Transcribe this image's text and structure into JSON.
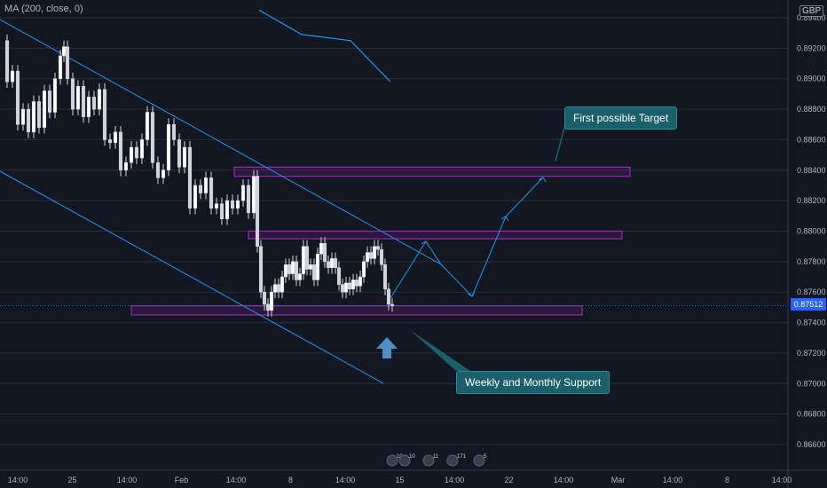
{
  "indicator_label": "MA (200, close, 0)",
  "currency": "GBP",
  "colors": {
    "background": "#131722",
    "grid": "#2a2e39",
    "candle_up": "#ffffff",
    "candle_down": "#ffffff",
    "trendline": "#2196f3",
    "zone": "#9c27b0",
    "callout": "#1b5f6b",
    "price_tag": "#2962ff"
  },
  "chart_data": {
    "type": "candlestick",
    "price_axis": {
      "labels": [
        "0.89400",
        "0.89200",
        "0.89000",
        "0.88800",
        "0.88600",
        "0.88400",
        "0.88200",
        "0.88000",
        "0.87800",
        "0.87600",
        "0.87400",
        "0.87200",
        "0.87000",
        "0.86800",
        "0.86600"
      ],
      "ylim": [
        0.8655,
        0.8945
      ]
    },
    "time_axis": {
      "labels": [
        "14:00",
        "25",
        "14:00",
        "Feb",
        "14:00",
        "8",
        "14:00",
        "15",
        "14:00",
        "22",
        "14:00",
        "Mar",
        "14:00",
        "8",
        "14:00"
      ]
    },
    "last_price": "0.87512",
    "annotations": {
      "target": "First possible Target",
      "support": "Weekly and  Monthly Support"
    },
    "zones": [
      {
        "label": "upper resistance",
        "y_low": 0.8836,
        "y_high": 0.8842
      },
      {
        "label": "middle resistance",
        "y_low": 0.8795,
        "y_high": 0.88
      },
      {
        "label": "weekly and monthly support",
        "y_low": 0.8745,
        "y_high": 0.8751
      }
    ],
    "ma200_points": [
      [
        0.8958,
        0.8945
      ],
      [
        0.8953,
        0.8929
      ],
      [
        0.8935,
        0.8925
      ],
      [
        0.8915,
        0.8898
      ]
    ],
    "event_badges": [
      "10",
      "10",
      "11",
      "171",
      "5"
    ]
  }
}
